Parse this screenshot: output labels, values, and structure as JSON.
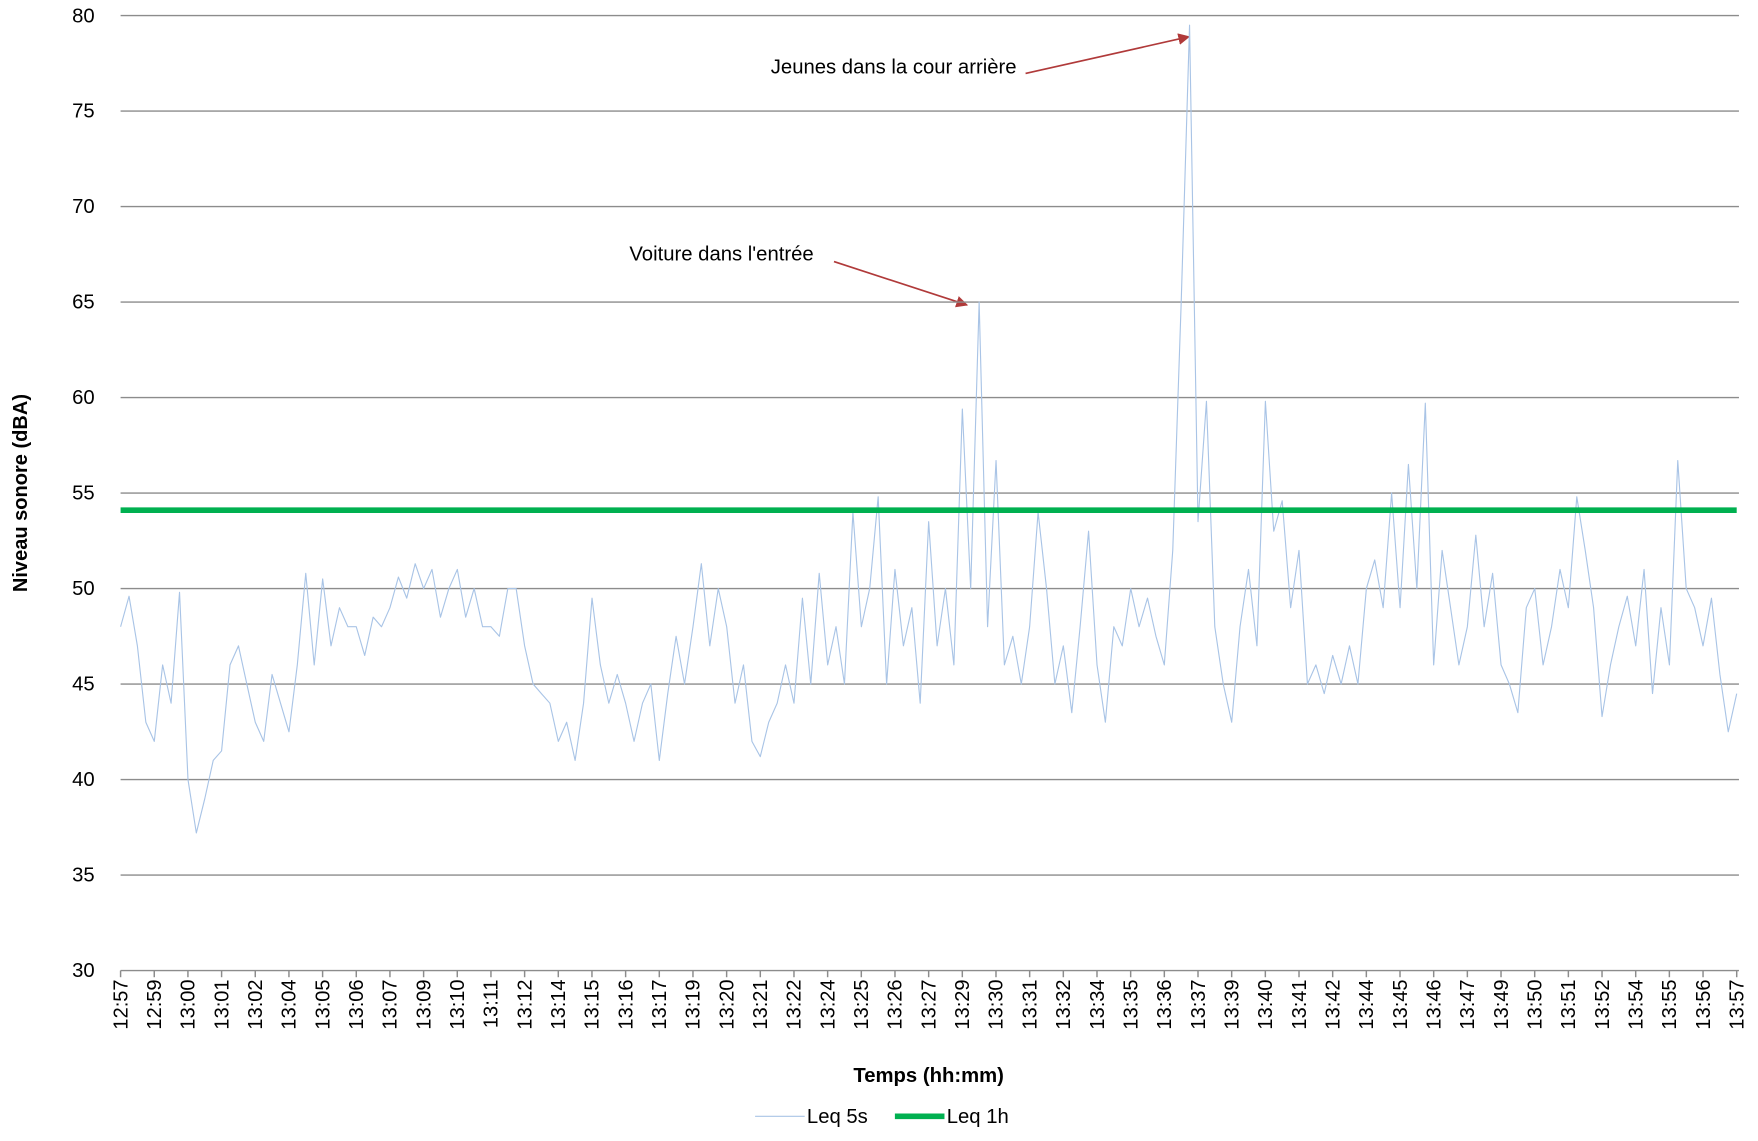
{
  "chart_data": {
    "type": "line",
    "xlabel": "Temps (hh:mm)",
    "ylabel": "Niveau sonore (dBA)",
    "categories": [
      "12:57",
      null,
      null,
      null,
      "12:59",
      null,
      null,
      null,
      "13:00",
      null,
      null,
      null,
      "13:01",
      null,
      null,
      null,
      "13:02",
      null,
      null,
      null,
      "13:04",
      null,
      null,
      null,
      "13:05",
      null,
      null,
      null,
      "13:06",
      null,
      null,
      null,
      "13:07",
      null,
      null,
      null,
      "13:09",
      null,
      null,
      null,
      "13:10",
      null,
      null,
      null,
      "13:11",
      null,
      null,
      null,
      "13:12",
      null,
      null,
      null,
      "13:14",
      null,
      null,
      null,
      "13:15",
      null,
      null,
      null,
      "13:16",
      null,
      null,
      null,
      "13:17",
      null,
      null,
      null,
      "13:19",
      null,
      null,
      null,
      "13:20",
      null,
      null,
      null,
      "13:21",
      null,
      null,
      null,
      "13:22",
      null,
      null,
      null,
      "13:24",
      null,
      null,
      null,
      "13:25",
      null,
      null,
      null,
      "13:26",
      null,
      null,
      null,
      "13:27",
      null,
      null,
      null,
      "13:29",
      null,
      null,
      null,
      "13:30",
      null,
      null,
      null,
      "13:31",
      null,
      null,
      null,
      "13:32",
      null,
      null,
      null,
      "13:34",
      null,
      null,
      null,
      "13:35",
      null,
      null,
      null,
      "13:36",
      null,
      null,
      null,
      "13:37",
      null,
      null,
      null,
      "13:39",
      null,
      null,
      null,
      "13:40",
      null,
      null,
      null,
      "13:41",
      null,
      null,
      null,
      "13:42",
      null,
      null,
      null,
      "13:44",
      null,
      null,
      null,
      "13:45",
      null,
      null,
      null,
      "13:46",
      null,
      null,
      null,
      "13:47",
      null,
      null,
      null,
      "13:49",
      null,
      null,
      null,
      "13:50",
      null,
      null,
      null,
      "13:51",
      null,
      null,
      null,
      "13:52",
      null,
      null,
      null,
      "13:54",
      null,
      null,
      null,
      "13:55",
      null,
      null,
      null,
      "13:56",
      null,
      null,
      null,
      "13:57"
    ],
    "series": [
      {
        "name": "Leq 5s",
        "color": "#a9c4e6",
        "width": 1,
        "values": [
          48,
          49.6,
          47,
          43,
          42,
          46,
          44,
          49.8,
          40,
          37.2,
          39,
          41,
          41.5,
          46,
          47,
          45,
          43,
          42,
          45.5,
          44,
          42.5,
          46,
          50.8,
          46,
          50.5,
          47,
          49,
          48,
          48,
          46.5,
          48.5,
          48,
          49,
          50.6,
          49.5,
          51.3,
          50,
          51,
          48.5,
          50,
          51,
          48.5,
          50,
          48,
          48,
          47.5,
          50,
          50,
          47,
          45,
          44.5,
          44,
          42,
          43,
          41,
          44,
          49.5,
          46,
          44,
          45.5,
          44,
          42,
          44,
          45,
          41,
          44.5,
          47.5,
          45,
          48,
          51.3,
          47,
          50,
          48,
          44,
          46,
          42,
          41.2,
          43,
          44,
          46,
          44,
          49.5,
          45,
          50.8,
          46,
          48,
          45,
          54,
          48,
          50,
          54.8,
          45,
          51,
          47,
          49,
          44,
          53.5,
          47,
          50,
          46,
          59.4,
          50,
          65,
          48,
          56.7,
          46,
          47.5,
          45,
          48,
          54,
          50,
          45,
          47,
          43.5,
          48,
          53,
          46,
          43,
          48,
          47,
          50,
          48,
          49.5,
          47.5,
          46,
          52,
          65,
          79.5,
          53.5,
          59.8,
          48,
          45,
          43,
          48,
          51,
          47,
          59.8,
          53,
          54.6,
          49,
          52,
          45,
          46,
          44.5,
          46.5,
          45,
          47,
          45,
          50,
          51.5,
          49,
          55,
          49,
          56.5,
          50,
          59.7,
          46,
          52,
          49,
          46,
          48,
          52.8,
          48,
          50.8,
          46,
          45,
          43.5,
          49,
          50,
          46,
          48,
          51,
          49,
          54.8,
          52,
          49,
          43.3,
          46,
          48,
          49.6,
          47,
          51,
          44.5,
          49,
          46,
          56.7,
          50,
          49,
          47,
          49.5,
          45.5,
          42.5,
          44.5
        ]
      },
      {
        "name": "Leq 1h",
        "color": "#00b050",
        "width": 5,
        "values": [
          54.1,
          54.1,
          54.1,
          54.1,
          54.1,
          54.1,
          54.1,
          54.1,
          54.1,
          54.1,
          54.1,
          54.1,
          54.1,
          54.1,
          54.1,
          54.1,
          54.1,
          54.1,
          54.1,
          54.1,
          54.1,
          54.1,
          54.1,
          54.1,
          54.1,
          54.1,
          54.1,
          54.1,
          54.1,
          54.1,
          54.1,
          54.1,
          54.1,
          54.1,
          54.1,
          54.1,
          54.1,
          54.1,
          54.1,
          54.1,
          54.1,
          54.1,
          54.1,
          54.1,
          54.1,
          54.1,
          54.1,
          54.1,
          54.1,
          54.1,
          54.1,
          54.1,
          54.1,
          54.1,
          54.1,
          54.1,
          54.1,
          54.1,
          54.1,
          54.1,
          54.1,
          54.1,
          54.1,
          54.1,
          54.1,
          54.1,
          54.1,
          54.1,
          54.1,
          54.1,
          54.1,
          54.1,
          54.1,
          54.1,
          54.1,
          54.1,
          54.1,
          54.1,
          54.1,
          54.1,
          54.1,
          54.1,
          54.1,
          54.1,
          54.1,
          54.1,
          54.1,
          54.1,
          54.1,
          54.1,
          54.1,
          54.1,
          54.1,
          54.1,
          54.1,
          54.1,
          54.1,
          54.1,
          54.1,
          54.1,
          54.1,
          54.1,
          54.1,
          54.1,
          54.1,
          54.1,
          54.1,
          54.1,
          54.1,
          54.1,
          54.1,
          54.1,
          54.1,
          54.1,
          54.1,
          54.1,
          54.1,
          54.1,
          54.1,
          54.1,
          54.1,
          54.1,
          54.1,
          54.1,
          54.1,
          54.1,
          54.1,
          54.1,
          54.1,
          54.1,
          54.1,
          54.1,
          54.1,
          54.1,
          54.1,
          54.1,
          54.1,
          54.1,
          54.1,
          54.1,
          54.1,
          54.1,
          54.1,
          54.1,
          54.1,
          54.1,
          54.1,
          54.1,
          54.1,
          54.1,
          54.1,
          54.1,
          54.1,
          54.1,
          54.1,
          54.1,
          54.1,
          54.1,
          54.1,
          54.1,
          54.1,
          54.1,
          54.1,
          54.1,
          54.1,
          54.1,
          54.1,
          54.1,
          54.1,
          54.1,
          54.1,
          54.1,
          54.1,
          54.1,
          54.1,
          54.1,
          54.1,
          54.1,
          54.1,
          54.1,
          54.1,
          54.1,
          54.1,
          54.1,
          54.1,
          54.1,
          54.1,
          54.1,
          54.1,
          54.1,
          54.1,
          54.1,
          54.1
        ]
      }
    ],
    "annotations": [
      {
        "text": "Jeunes dans la cour arrière"
      },
      {
        "text": "Voiture dans l'entrée"
      }
    ],
    "ylim": [
      30,
      80
    ],
    "yticks": [
      30,
      35,
      40,
      45,
      50,
      55,
      60,
      65,
      70,
      75,
      80
    ],
    "grid": true,
    "legend": "bottom"
  }
}
